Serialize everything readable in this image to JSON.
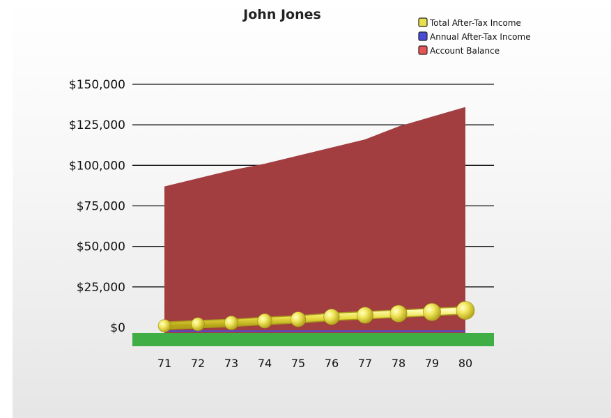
{
  "chart_data": {
    "type": "area",
    "title": "John Jones",
    "xlabel": "",
    "ylabel": "",
    "categories": [
      "71",
      "72",
      "73",
      "74",
      "75",
      "76",
      "77",
      "78",
      "79",
      "80"
    ],
    "ylim": [
      0,
      150000
    ],
    "yticks": [
      0,
      25000,
      50000,
      75000,
      100000,
      125000,
      150000
    ],
    "ytick_labels": [
      "$0",
      "$25,000",
      "$50,000",
      "$75,000",
      "$100,000",
      "$125,000",
      "$150,000"
    ],
    "grid": true,
    "legend_position": "top-right",
    "series": [
      {
        "name": "Total After-Tax Income",
        "type": "line",
        "color": "#e8e04a",
        "values": [
          1000,
          2000,
          2800,
          4000,
          5000,
          6500,
          7500,
          8500,
          9500,
          10500
        ]
      },
      {
        "name": "Annual After-Tax Income",
        "type": "line",
        "color": "#4a4ad8",
        "values": [
          300,
          300,
          300,
          300,
          300,
          300,
          300,
          300,
          300,
          300
        ]
      },
      {
        "name": "Account Balance",
        "type": "area",
        "color": "#e85454",
        "fill_color": "#a23d40",
        "values": [
          87000,
          92000,
          97000,
          101000,
          106000,
          111000,
          116000,
          124000,
          130000,
          136000
        ]
      }
    ],
    "floor_color": "#3fae45"
  }
}
